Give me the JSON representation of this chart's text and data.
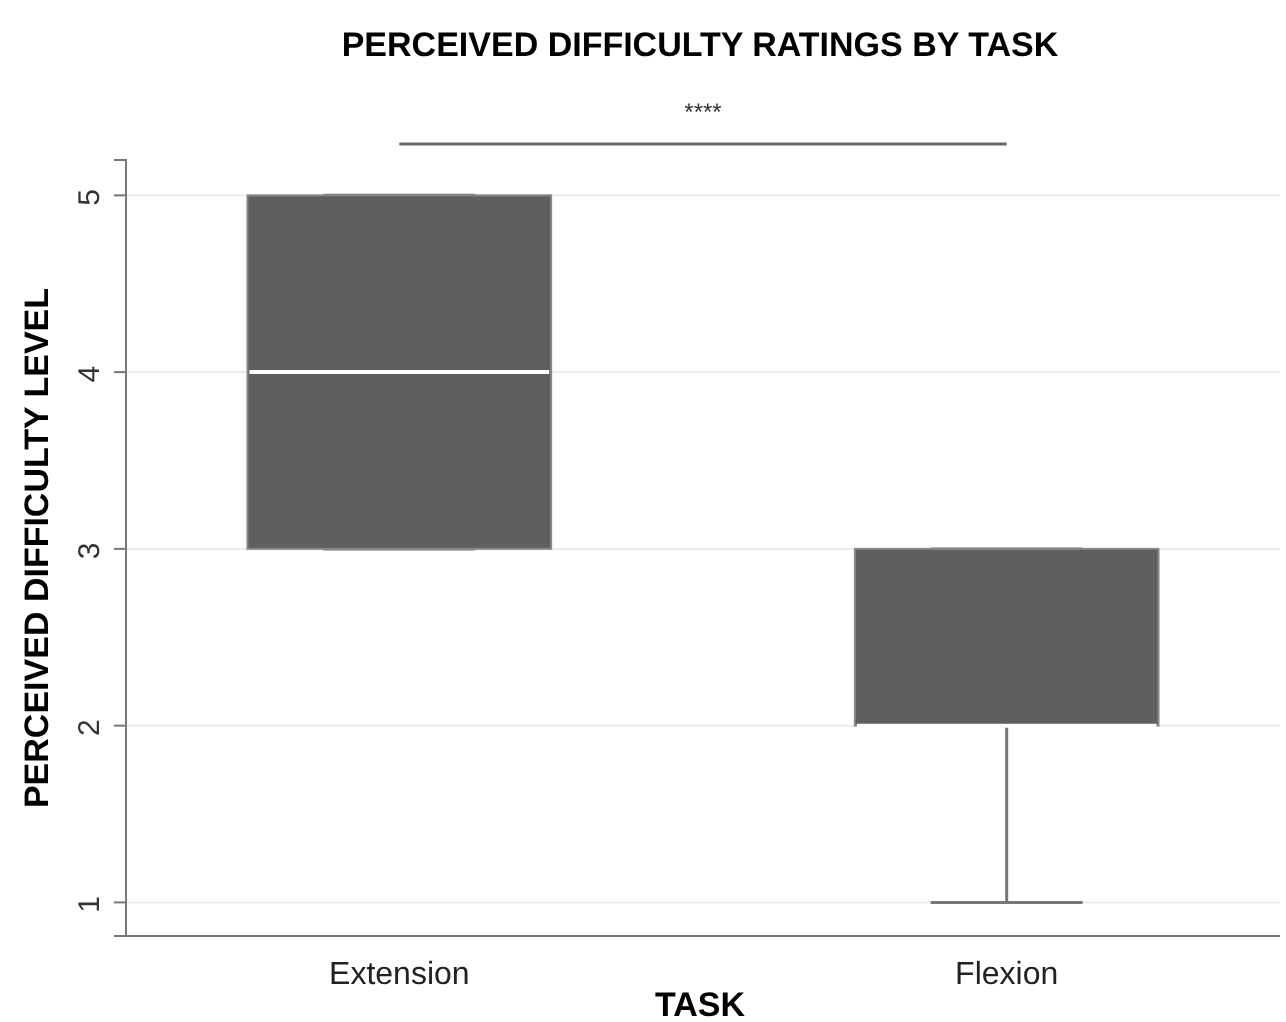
{
  "chart_data": {
    "type": "box",
    "title": "PERCEIVED DIFFICULTY RATINGS BY TASK",
    "xlabel": "TASK",
    "ylabel": "PERCEIVED DIFFICULTY LEVEL",
    "categories": [
      "Extension",
      "Flexion"
    ],
    "boxes": [
      {
        "low": 3,
        "q1": 3,
        "median": 4,
        "q3": 5,
        "high": 5
      },
      {
        "low": 1,
        "q1": 2,
        "median": 2,
        "q3": 3,
        "high": 3
      }
    ],
    "color": "#5f5f5f",
    "ylim": [
      0.81,
      5.2
    ],
    "yticks": [
      1,
      2,
      3,
      4,
      5
    ],
    "grid": "y",
    "annotations": [
      "****"
    ]
  }
}
